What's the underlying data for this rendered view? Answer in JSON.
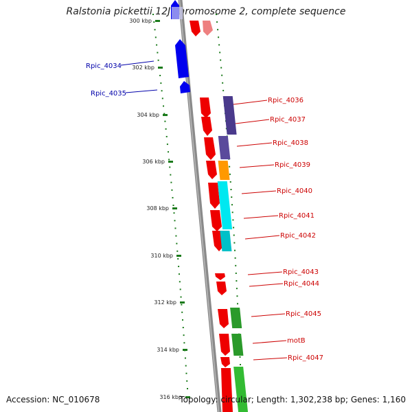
{
  "title": "Ralstonia pickettii 12J chromosome 2, complete sequence",
  "accession": "Accession: NC_010678",
  "summary": "Topology: circular; Length: 1,302,238 bp; Genes: 1,160",
  "colors": {
    "backbone": "#888888",
    "tick": "#1a7a1a",
    "reverse_genes": "#0000ee",
    "forward_genes": "#ee0000",
    "label_blue": "#0000aa",
    "label_red": "#cc0000"
  },
  "scale_ticks": [
    "300 kbp",
    "302 kbp",
    "304 kbp",
    "306 kbp",
    "308 kbp",
    "310 kbp",
    "312 kbp",
    "314 kbp",
    "316 kbp"
  ],
  "genes_left": [
    {
      "label": "Rpic_4034",
      "color": "#0000aa"
    },
    {
      "label": "Rpic_4035",
      "color": "#0000aa"
    }
  ],
  "genes_right": [
    {
      "label": "Rpic_4036",
      "color": "#cc0000"
    },
    {
      "label": "Rpic_4037",
      "color": "#cc0000"
    },
    {
      "label": "Rpic_4038",
      "color": "#cc0000"
    },
    {
      "label": "Rpic_4039",
      "color": "#cc0000"
    },
    {
      "label": "Rpic_4040",
      "color": "#cc0000"
    },
    {
      "label": "Rpic_4041",
      "color": "#cc0000"
    },
    {
      "label": "Rpic_4042",
      "color": "#cc0000"
    },
    {
      "label": "Rpic_4043",
      "color": "#cc0000"
    },
    {
      "label": "Rpic_4044",
      "color": "#cc0000"
    },
    {
      "label": "Rpic_4045",
      "color": "#cc0000"
    },
    {
      "label": "motB",
      "color": "#cc0000"
    },
    {
      "label": "Rpic_4047",
      "color": "#cc0000"
    }
  ],
  "cog_colors": [
    "#4a3a8c",
    "#4a3a8c",
    "#ff9900",
    "#00e0e8",
    "#00c8d0",
    "#2a9a2a",
    "#2a9a2a",
    "#33bb33"
  ]
}
